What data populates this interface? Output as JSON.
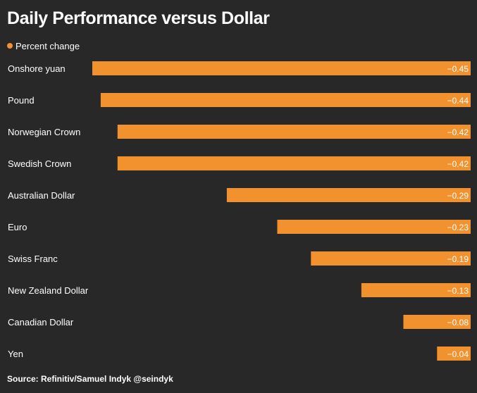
{
  "chart_data": {
    "type": "bar",
    "orientation": "horizontal",
    "title": "Daily Performance versus Dollar",
    "legend": [
      {
        "label": "Percent change",
        "color": "#f2922e"
      }
    ],
    "categories": [
      "Onshore yuan",
      "Pound",
      "Norwegian Crown",
      "Swedish Crown",
      "Australian Dollar",
      "Euro",
      "Swiss Franc",
      "New Zealand Dollar",
      "Canadian Dollar",
      "Yen"
    ],
    "values": [
      -0.45,
      -0.44,
      -0.42,
      -0.42,
      -0.29,
      -0.23,
      -0.19,
      -0.13,
      -0.08,
      -0.04
    ],
    "value_labels": [
      "−0.45",
      "−0.44",
      "−0.42",
      "−0.42",
      "−0.29",
      "−0.23",
      "−0.19",
      "−0.13",
      "−0.08",
      "−0.04"
    ],
    "xlim": [
      -0.45,
      0
    ],
    "xlabel": "",
    "ylabel": "",
    "grid": false,
    "bar_color": "#f2922e",
    "source": "Source: Refinitiv/Samuel Indyk @seindyk"
  }
}
